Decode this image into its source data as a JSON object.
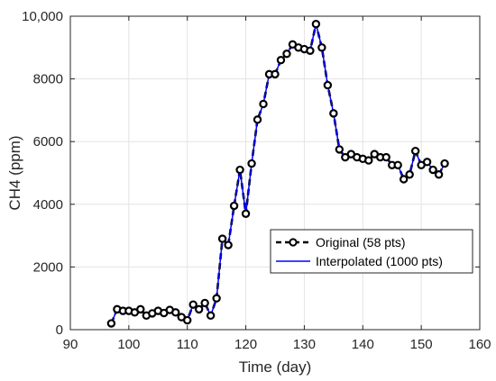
{
  "chart_data": {
    "type": "line",
    "title": "",
    "xlabel": "Time (day)",
    "ylabel": "CH4 (ppm)",
    "xlim": [
      90,
      160
    ],
    "ylim": [
      0,
      10000
    ],
    "xticks": [
      90,
      100,
      110,
      120,
      130,
      140,
      150,
      160
    ],
    "xtick_labels": [
      "90",
      "100",
      "110",
      "120",
      "130",
      "140",
      "150",
      "160"
    ],
    "yticks": [
      0,
      2000,
      4000,
      6000,
      8000,
      10000
    ],
    "ytick_labels": [
      "0",
      "2000",
      "4000",
      "6000",
      "8000",
      "10,000"
    ],
    "grid": true,
    "legend_position": "lower-right",
    "series": [
      {
        "name": "Original (58 pts)",
        "style": "dashed-black-circle-markers",
        "color": "#000000",
        "x": [
          97,
          98,
          99,
          100,
          101,
          102,
          103,
          104,
          105,
          106,
          107,
          108,
          109,
          110,
          111,
          112,
          113,
          114,
          115,
          116,
          117,
          118,
          119,
          120,
          121,
          122,
          123,
          124,
          125,
          126,
          127,
          128,
          129,
          130,
          131,
          132,
          133,
          134,
          135,
          136,
          137,
          138,
          139,
          140,
          141,
          142,
          143,
          144,
          145,
          146,
          147,
          148,
          149,
          150,
          151,
          152,
          153,
          154
        ],
        "y": [
          200,
          650,
          600,
          600,
          550,
          650,
          450,
          520,
          600,
          530,
          630,
          550,
          400,
          300,
          800,
          650,
          850,
          450,
          1000,
          2900,
          2700,
          3950,
          5100,
          3700,
          5300,
          6700,
          7200,
          8150,
          8150,
          8600,
          8800,
          9100,
          9000,
          8950,
          8900,
          9750,
          9000,
          7800,
          6900,
          5750,
          5500,
          5600,
          5500,
          5450,
          5400,
          5600,
          5500,
          5500,
          5250,
          5250,
          4800,
          4950,
          5700,
          5250,
          5350,
          5100,
          4950,
          5300
        ]
      },
      {
        "name": "Interpolated (1000 pts)",
        "style": "solid-blue-line",
        "color": "#0000ff",
        "x": [
          97,
          98,
          99,
          100,
          101,
          102,
          103,
          104,
          105,
          106,
          107,
          108,
          109,
          110,
          111,
          112,
          113,
          114,
          115,
          116,
          117,
          118,
          119,
          120,
          121,
          122,
          123,
          124,
          125,
          126,
          127,
          128,
          129,
          130,
          131,
          132,
          133,
          134,
          135,
          136,
          137,
          138,
          139,
          140,
          141,
          142,
          143,
          144,
          145,
          146,
          147,
          148,
          149,
          150,
          151,
          152,
          153,
          154
        ],
        "y": [
          200,
          650,
          600,
          600,
          550,
          650,
          450,
          520,
          600,
          530,
          630,
          550,
          400,
          300,
          800,
          650,
          850,
          450,
          1000,
          2900,
          2700,
          3950,
          5100,
          3700,
          5300,
          6700,
          7200,
          8150,
          8150,
          8600,
          8800,
          9100,
          9000,
          8950,
          8900,
          9750,
          9000,
          7800,
          6900,
          5750,
          5500,
          5600,
          5500,
          5450,
          5400,
          5600,
          5500,
          5500,
          5250,
          5250,
          4800,
          4950,
          5700,
          5250,
          5350,
          5100,
          4950,
          5300
        ]
      }
    ]
  }
}
